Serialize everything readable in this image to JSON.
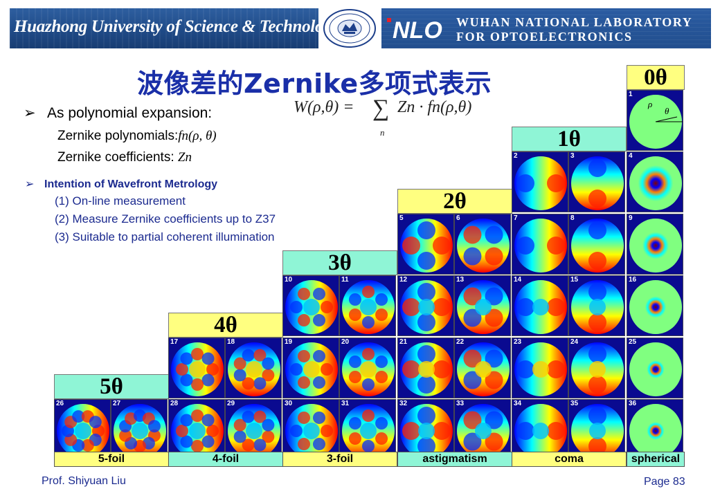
{
  "header": {
    "university": "Huazhong University of Science & Technology",
    "lab_line1": "WUHAN NATIONAL LABORATORY",
    "lab_line2": "FOR OPTOELECTRONICS",
    "lab_logo_text": "NLO"
  },
  "title": "波像差的Zernike多项式表示",
  "bullet_main": "As polynomial expansion:",
  "sub_polynomials": "Zernike polynomials:",
  "sub_polynomials_sym": "fn(ρ, θ)",
  "sub_coefficients": "Zernike coefficients:",
  "sub_coefficients_sym": "Zn",
  "formula": {
    "lhs": "W(ρ,θ) =",
    "sum": "∑",
    "sum_index": "n",
    "rhs": "Zn · fn(ρ,θ)"
  },
  "intention": {
    "heading": "Intention of Wavefront Metrology",
    "items": [
      "(1) On-line measurement",
      "(2) Measure Zernike coefficients up to Z37",
      "(3) Suitable to partial coherent illumination"
    ]
  },
  "orders": [
    "0θ",
    "1θ",
    "2θ",
    "3θ",
    "4θ",
    "5θ"
  ],
  "first_cell_symbols": [
    "ρ",
    "θ"
  ],
  "columns": [
    "5-foil",
    "4-foil",
    "3-foil",
    "astigmatism",
    "coma",
    "spherical"
  ],
  "term_numbers": [
    "1",
    "2",
    "3",
    "4",
    "5",
    "6",
    "7",
    "8",
    "9",
    "10",
    "11",
    "12",
    "13",
    "14",
    "15",
    "16",
    "17",
    "18",
    "19",
    "20",
    "21",
    "22",
    "23",
    "24",
    "25",
    "26",
    "27",
    "28",
    "29",
    "30",
    "31",
    "32",
    "33",
    "34",
    "35",
    "36"
  ],
  "colors": {
    "title": "#1a2fa8",
    "yellow": "#ffff80",
    "mint": "#8ff5d6",
    "cell_bg": "#0a0a90",
    "footer": "#1b2a8f"
  },
  "footer": {
    "author": "Prof. Shiyuan Liu",
    "page": "Page 83"
  }
}
